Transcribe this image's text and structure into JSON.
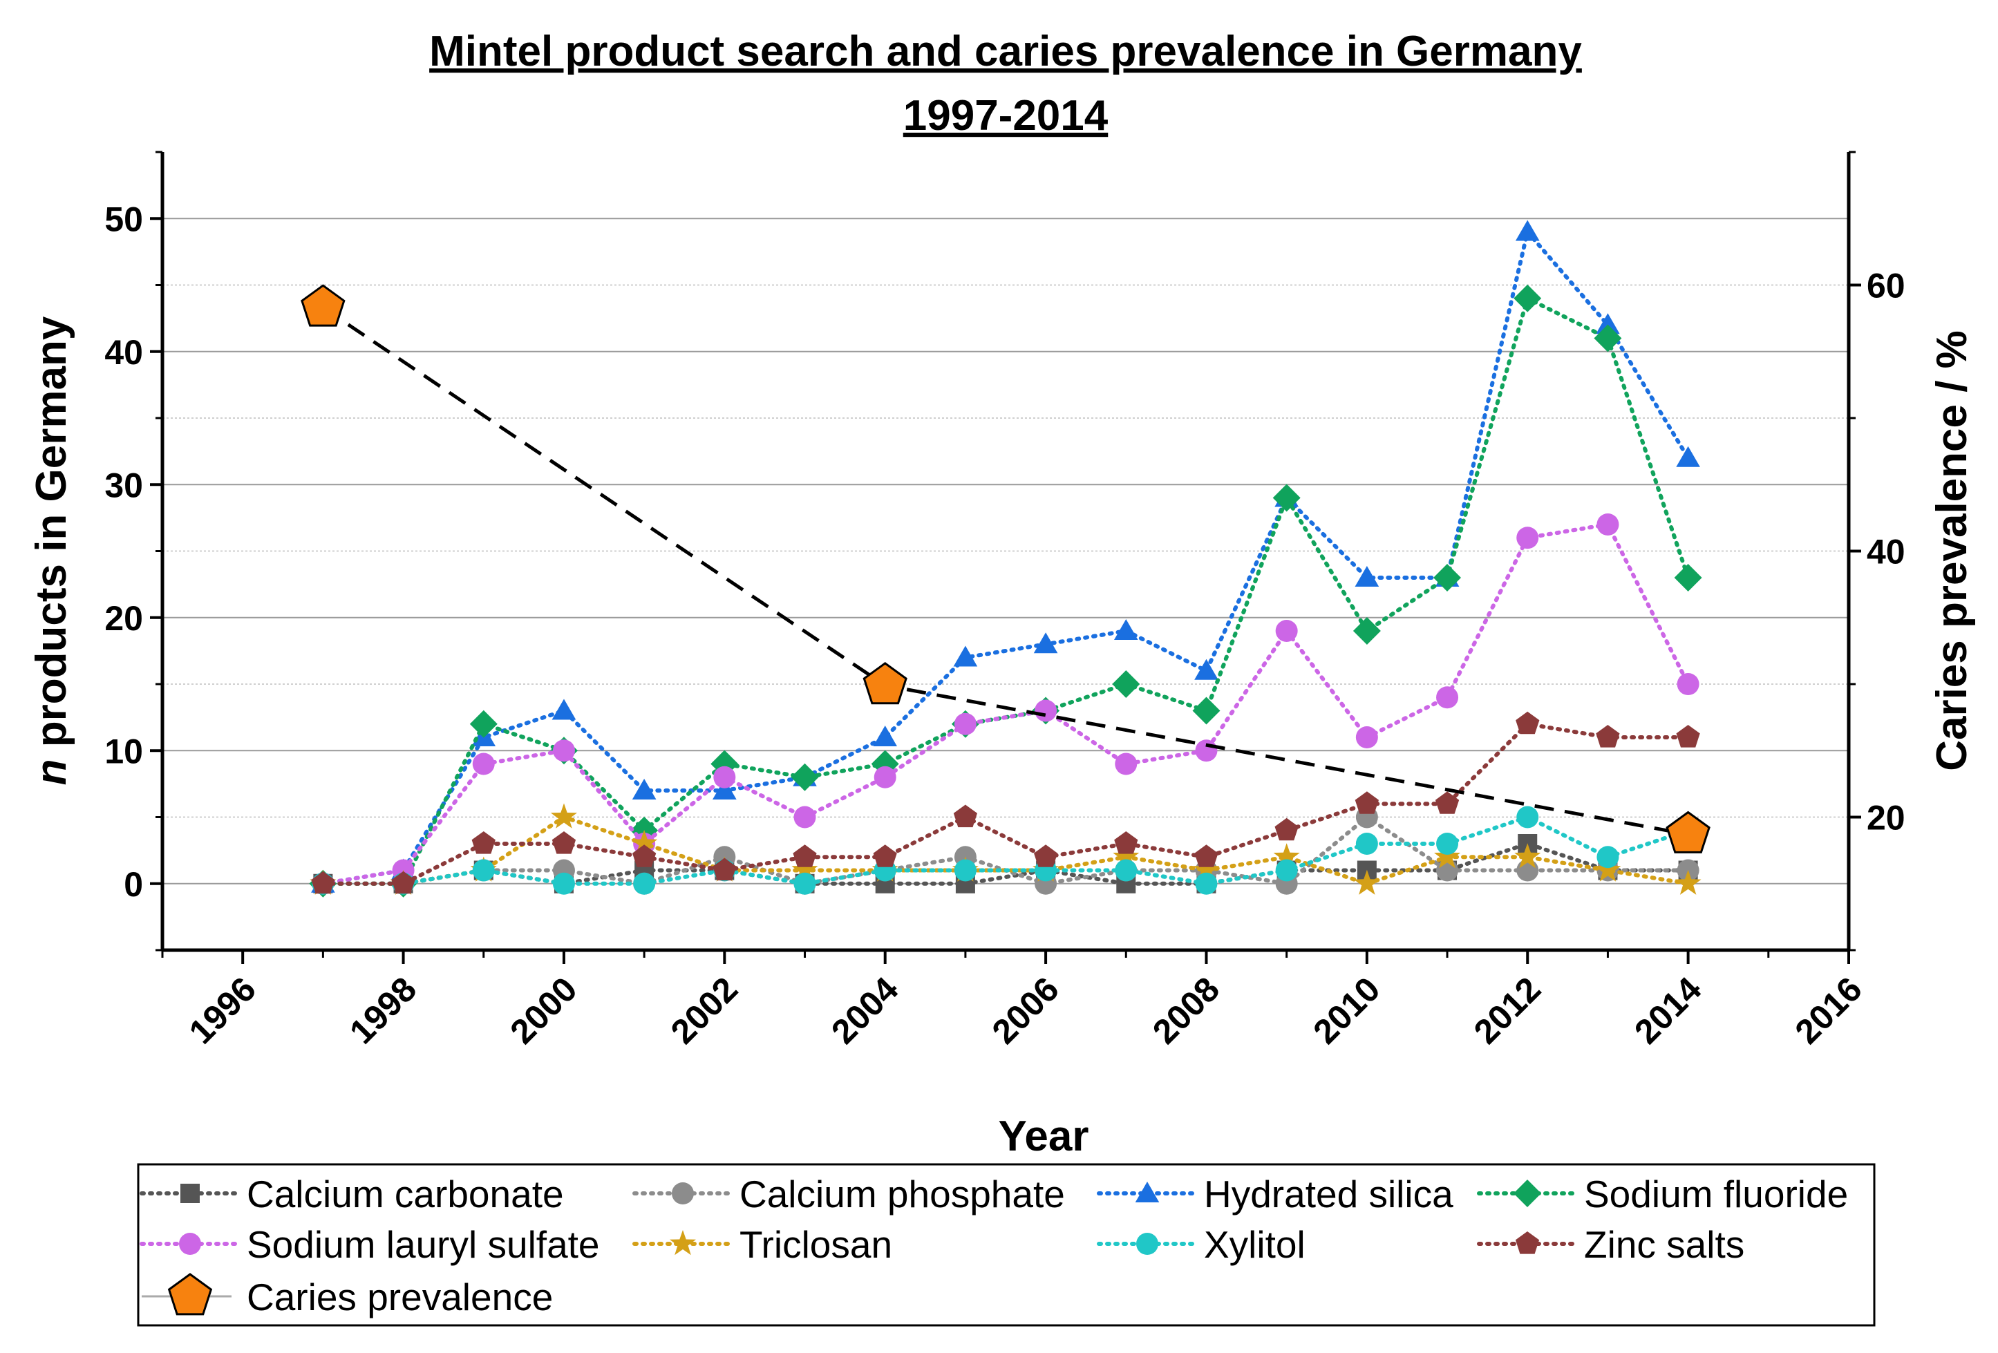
{
  "chart_data": {
    "type": "line",
    "title": "Mintel product search and caries prevalence in Germany",
    "subtitle": "1997-2014",
    "xlabel": "Year",
    "ylabel_italic": "n",
    "ylabel_rest": " products in Germany",
    "y2label": "Caries prevalence / %",
    "xlim": [
      1995,
      2016
    ],
    "ylim": [
      -5,
      55
    ],
    "y2lim": [
      10,
      70
    ],
    "x_ticks": [
      "1996",
      "1998",
      "2000",
      "2002",
      "2004",
      "2006",
      "2008",
      "2010",
      "2012",
      "2014",
      "2016"
    ],
    "y_ticks": [
      "0",
      "10",
      "20",
      "30",
      "40",
      "50"
    ],
    "y2_ticks": [
      "20",
      "40",
      "60"
    ],
    "grid": true,
    "legend_position": "bottom",
    "x": [
      1997,
      1998,
      1999,
      2000,
      2001,
      2002,
      2003,
      2004,
      2005,
      2006,
      2007,
      2008,
      2009,
      2010,
      2011,
      2012,
      2013,
      2014
    ],
    "series": [
      {
        "name": "Calcium carbonate",
        "color": "#555555",
        "marker": "square",
        "axis": "left",
        "values": [
          0,
          0,
          1,
          0,
          1,
          1,
          0,
          0,
          0,
          1,
          0,
          0,
          1,
          1,
          1,
          3,
          1,
          1
        ]
      },
      {
        "name": "Calcium phosphate",
        "color": "#8c8c8c",
        "marker": "circle",
        "axis": "left",
        "values": [
          0,
          0,
          1,
          1,
          0,
          2,
          0,
          1,
          2,
          0,
          1,
          1,
          0,
          5,
          1,
          1,
          1,
          1
        ]
      },
      {
        "name": "Hydrated silica",
        "color": "#1a6fe0",
        "marker": "triangle",
        "axis": "left",
        "values": [
          0,
          1,
          11,
          13,
          7,
          7,
          8,
          11,
          17,
          18,
          19,
          16,
          29,
          23,
          23,
          49,
          42,
          32
        ]
      },
      {
        "name": "Sodium fluoride",
        "color": "#10a35c",
        "marker": "diamond",
        "axis": "left",
        "values": [
          0,
          0,
          12,
          10,
          4,
          9,
          8,
          9,
          12,
          13,
          15,
          13,
          29,
          19,
          23,
          44,
          41,
          23
        ]
      },
      {
        "name": "Sodium lauryl sulfate",
        "color": "#cc66e6",
        "marker": "circle",
        "axis": "left",
        "values": [
          0,
          1,
          9,
          10,
          3,
          8,
          5,
          8,
          12,
          13,
          9,
          10,
          19,
          11,
          14,
          26,
          27,
          15
        ]
      },
      {
        "name": "Triclosan",
        "color": "#d4a017",
        "marker": "star",
        "axis": "left",
        "values": [
          0,
          0,
          1,
          5,
          3,
          1,
          1,
          1,
          1,
          1,
          2,
          1,
          2,
          0,
          2,
          2,
          1,
          0
        ]
      },
      {
        "name": "Xylitol",
        "color": "#20c7c7",
        "marker": "circle",
        "axis": "left",
        "values": [
          0,
          0,
          1,
          0,
          0,
          1,
          0,
          1,
          1,
          1,
          1,
          0,
          1,
          3,
          3,
          5,
          2,
          4
        ]
      },
      {
        "name": "Zinc salts",
        "color": "#8b3a3a",
        "marker": "pentagon",
        "axis": "left",
        "values": [
          0,
          0,
          3,
          3,
          2,
          1,
          2,
          2,
          5,
          2,
          3,
          2,
          4,
          6,
          6,
          12,
          11,
          11
        ]
      },
      {
        "name": "Caries prevalence",
        "color": "#f7820f",
        "marker": "pentagon-big",
        "axis": "right",
        "x": [
          1997,
          2004,
          2014
        ],
        "values": [
          58.3,
          29.9,
          18.7
        ]
      }
    ]
  }
}
